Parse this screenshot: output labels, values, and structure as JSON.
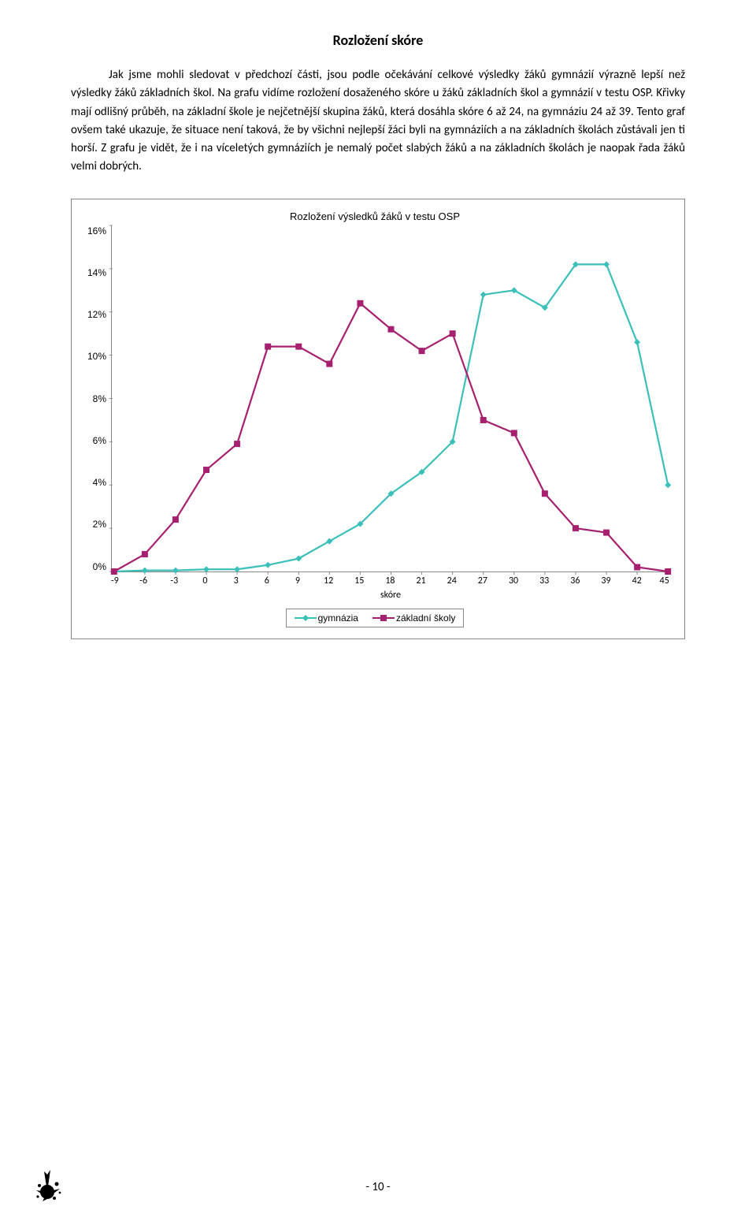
{
  "title": "Rozložení skóre",
  "paragraph": "Jak jsme mohli sledovat v předchozí části, jsou podle očekávání celkové výsledky žáků gymnázií výrazně lepší než výsledky žáků základních škol. Na grafu vidíme rozložení dosaženého skóre u žáků základních škol a gymnázií v testu OSP. Křivky mají odlišný průběh, na základní škole je nejčetnější skupina žáků, která dosáhla skóre 6 až 24, na gymnáziu 24 až 39. Tento graf ovšem také ukazuje, že situace není taková, že by všichni nejlepší žáci byli na gymnáziích a na základních školách zůstávali jen ti horší. Z grafu je vidět, že i na víceletých gymnáziích je nemalý počet slabých žáků a na základních školách je naopak řada žáků velmi dobrých.",
  "chart": {
    "type": "line",
    "title": "Rozložení výsledků žáků v testu OSP",
    "x_label": "skóre",
    "x_values": [
      -9,
      -6,
      -3,
      0,
      3,
      6,
      9,
      12,
      15,
      18,
      21,
      24,
      27,
      30,
      33,
      36,
      39,
      42,
      45
    ],
    "x_ticks": [
      "-9",
      "-6",
      "-3",
      "0",
      "3",
      "6",
      "9",
      "12",
      "15",
      "18",
      "21",
      "24",
      "27",
      "30",
      "33",
      "36",
      "39",
      "42",
      "45"
    ],
    "y_ticks": [
      "16%",
      "14%",
      "12%",
      "10%",
      "8%",
      "6%",
      "4%",
      "2%",
      "0%"
    ],
    "ylim": [
      0,
      16
    ],
    "series": [
      {
        "name": "gymnázia",
        "color": "#3bbfb9",
        "marker": "diamond",
        "marker_size": 8,
        "line_width": 2.2,
        "y": [
          0.0,
          0.05,
          0.05,
          0.1,
          0.1,
          0.3,
          0.6,
          1.4,
          2.2,
          3.6,
          4.6,
          6.0,
          12.8,
          13.0,
          12.2,
          14.2,
          14.2,
          10.6,
          4.0
        ]
      },
      {
        "name": "základní školy",
        "color": "#a71f6f",
        "marker": "square",
        "marker_size": 8,
        "line_width": 2.2,
        "y": [
          0.0,
          0.8,
          2.4,
          4.7,
          5.9,
          10.4,
          10.4,
          9.6,
          12.4,
          11.2,
          10.2,
          11.0,
          7.0,
          6.4,
          3.6,
          2.0,
          1.8,
          0.2,
          0.0
        ]
      }
    ],
    "legend_labels": [
      "gymnázia",
      "základní školy"
    ],
    "background_color": "#ffffff",
    "border_color": "#888888",
    "axis_color": "#888888",
    "text_color": "#000000",
    "axis_fontsize": 12,
    "title_fontsize": 13
  },
  "page_number": "- 10 -"
}
